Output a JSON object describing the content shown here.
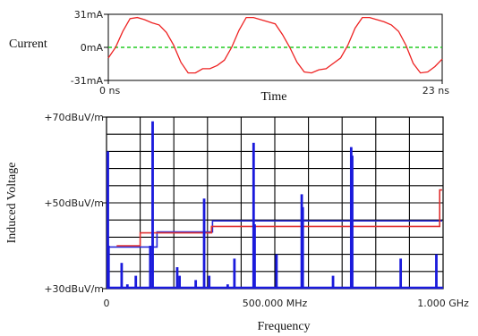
{
  "chart_data": [
    {
      "type": "line",
      "ylabel": "Current",
      "xlabel": "Time",
      "x_unit": "ns",
      "xlim": [
        0,
        23
      ],
      "ylim": [
        -31,
        31
      ],
      "x_tick_labels": [
        "0 ns",
        "23 ns"
      ],
      "y_tick_labels": [
        "31mA",
        "0mA",
        "-31mA"
      ],
      "y_ticks": [
        31,
        0,
        -31
      ],
      "grid": false,
      "reference_line": {
        "y": 0,
        "color": "#22cc22",
        "style": "dashed"
      },
      "series": [
        {
          "color": "#ee2222",
          "points": [
            [
              0.0,
              -10
            ],
            [
              0.5,
              0
            ],
            [
              1.0,
              15
            ],
            [
              1.5,
              27
            ],
            [
              2.0,
              28
            ],
            [
              2.5,
              26
            ],
            [
              3.0,
              23
            ],
            [
              3.5,
              21
            ],
            [
              4.0,
              14
            ],
            [
              4.5,
              2
            ],
            [
              5.0,
              -14
            ],
            [
              5.5,
              -24
            ],
            [
              6.0,
              -24
            ],
            [
              6.5,
              -20
            ],
            [
              7.0,
              -20
            ],
            [
              7.5,
              -17
            ],
            [
              8.0,
              -12
            ],
            [
              8.5,
              0
            ],
            [
              9.0,
              16
            ],
            [
              9.5,
              28
            ],
            [
              10.0,
              28
            ],
            [
              10.5,
              26
            ],
            [
              11.0,
              24
            ],
            [
              11.5,
              22
            ],
            [
              12.0,
              12
            ],
            [
              12.5,
              0
            ],
            [
              13.0,
              -14
            ],
            [
              13.5,
              -23
            ],
            [
              14.0,
              -24
            ],
            [
              14.5,
              -21
            ],
            [
              15.0,
              -20
            ],
            [
              15.5,
              -15
            ],
            [
              16.0,
              -10
            ],
            [
              16.5,
              2
            ],
            [
              17.0,
              18
            ],
            [
              17.5,
              28
            ],
            [
              18.0,
              28
            ],
            [
              18.5,
              26
            ],
            [
              19.0,
              24
            ],
            [
              19.5,
              21
            ],
            [
              20.0,
              15
            ],
            [
              20.5,
              2
            ],
            [
              21.0,
              -15
            ],
            [
              21.5,
              -24
            ],
            [
              22.0,
              -23
            ],
            [
              22.5,
              -18
            ],
            [
              23.0,
              -11
            ]
          ]
        }
      ]
    },
    {
      "type": "bar",
      "xlabel": "Frequency",
      "ylabel": "Induced Voltage",
      "xlim": [
        0,
        1000
      ],
      "x_unit": "MHz",
      "ylim": [
        30,
        70
      ],
      "y_unit": "dBuV/m",
      "x_tick_labels": [
        "0",
        "500.000 MHz",
        "1.000 GHz"
      ],
      "x_ticks": [
        0,
        500,
        1000
      ],
      "y_tick_labels": [
        "+70dBuV/m",
        "+50dBuV/m",
        "+30dBuV/m"
      ],
      "y_ticks": [
        70,
        50,
        30
      ],
      "grid": true,
      "bar_color": "#1a1adc",
      "bars": [
        {
          "x": 0,
          "y": 62
        },
        {
          "x": 6,
          "y": 40
        },
        {
          "x": 45,
          "y": 36
        },
        {
          "x": 62,
          "y": 31
        },
        {
          "x": 87,
          "y": 33
        },
        {
          "x": 130,
          "y": 40
        },
        {
          "x": 137,
          "y": 69
        },
        {
          "x": 210,
          "y": 35
        },
        {
          "x": 217,
          "y": 33
        },
        {
          "x": 265,
          "y": 32
        },
        {
          "x": 290,
          "y": 51
        },
        {
          "x": 305,
          "y": 33
        },
        {
          "x": 360,
          "y": 31
        },
        {
          "x": 380,
          "y": 37
        },
        {
          "x": 437,
          "y": 64
        },
        {
          "x": 440,
          "y": 45
        },
        {
          "x": 505,
          "y": 38
        },
        {
          "x": 580,
          "y": 52
        },
        {
          "x": 583,
          "y": 49
        },
        {
          "x": 673,
          "y": 33
        },
        {
          "x": 727,
          "y": 63
        },
        {
          "x": 730,
          "y": 61
        },
        {
          "x": 874,
          "y": 37
        },
        {
          "x": 980,
          "y": 38
        }
      ],
      "limit_lines": [
        {
          "color": "#2a2ad8",
          "step_points": [
            [
              0,
              39.7
            ],
            [
              150,
              39.7
            ],
            [
              150,
              43.2
            ],
            [
              315,
              43.2
            ],
            [
              315,
              45.8
            ],
            [
              1000,
              45.8
            ]
          ]
        },
        {
          "color": "#e03030",
          "step_points": [
            [
              30,
              40
            ],
            [
              100,
              40
            ],
            [
              100,
              43
            ],
            [
              312,
              43
            ],
            [
              312,
              44.5
            ],
            [
              990,
              44.5
            ],
            [
              990,
              53
            ],
            [
              1050,
              53
            ]
          ]
        }
      ]
    }
  ]
}
